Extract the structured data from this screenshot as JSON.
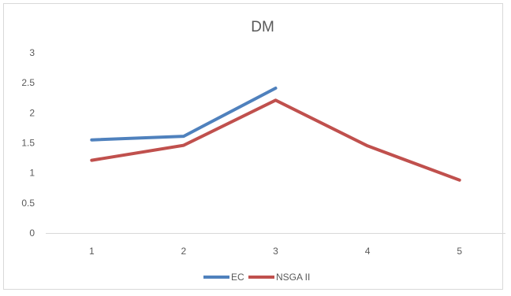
{
  "chart_data": {
    "type": "line",
    "title": "DM",
    "xlabel": "",
    "ylabel": "",
    "categories": [
      "1",
      "2",
      "3",
      "4",
      "5"
    ],
    "y_ticks": [
      "0",
      "0.5",
      "1",
      "1.5",
      "2",
      "2.5",
      "3"
    ],
    "ylim": [
      0,
      3
    ],
    "grid": false,
    "legend_position": "bottom",
    "series": [
      {
        "name": "EC",
        "color": "#4f81bd",
        "values": [
          1.55,
          1.61,
          2.41,
          null,
          null
        ]
      },
      {
        "name": "NSGA II",
        "color": "#c0504d",
        "values": [
          1.21,
          1.46,
          2.21,
          1.45,
          0.88
        ]
      }
    ]
  }
}
